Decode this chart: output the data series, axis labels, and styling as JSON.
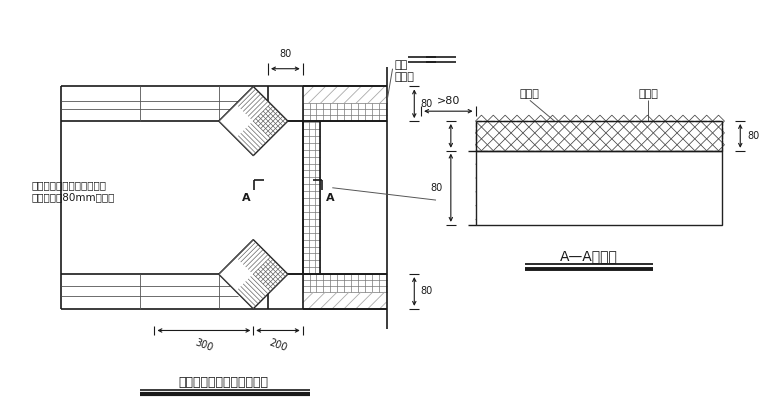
{
  "title_left": "门窗洞口附加网格布示意图",
  "title_right": "A—A剑面图",
  "label_fujia": "附加",
  "label_wanggebu": "网格布",
  "label_wanggebu2": "网格布",
  "label_jisuba": "挤塑板",
  "label_contact": "与墙体接触一面用粘结砂浆",
  "label_pre": "预粘不小于80mm网格布",
  "dim_80_top": "80",
  "dim_80_right1": "80",
  "dim_80_right2": "80",
  "dim_gt80": ">80",
  "dim_300": "300",
  "dim_200": "200",
  "lc": "#1a1a1a",
  "gray": "#888888"
}
